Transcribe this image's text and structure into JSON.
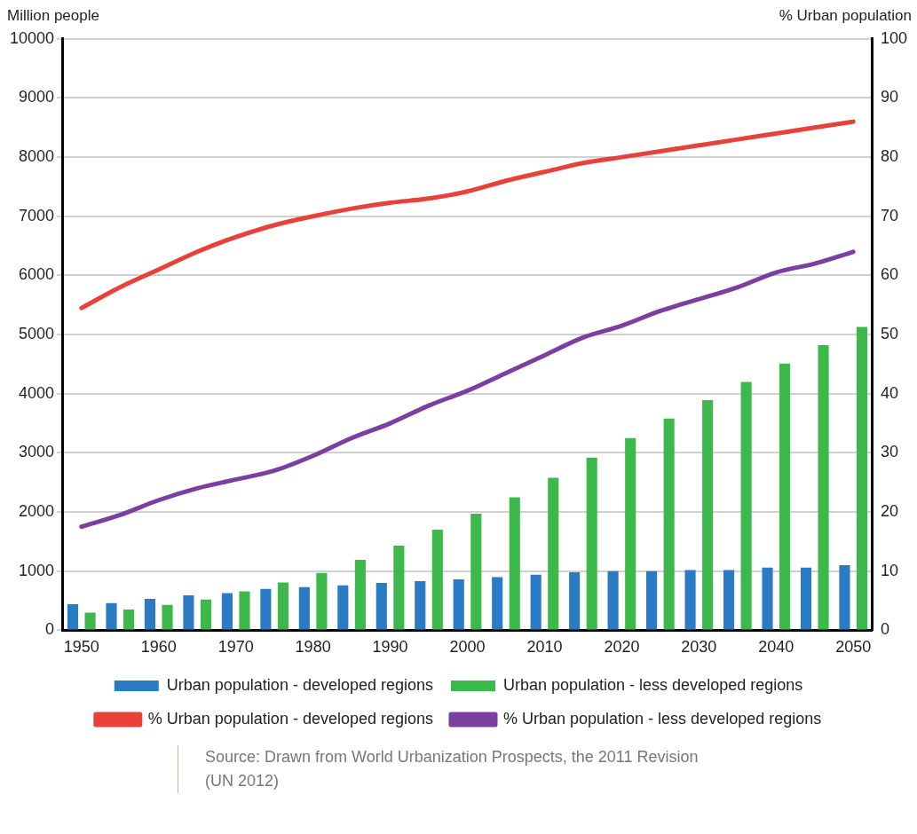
{
  "chart_data": {
    "type": "bar",
    "ylabel": "Million people",
    "y2label": "% Urban population",
    "categories": [
      "1950",
      null,
      "1960",
      null,
      "1970",
      null,
      "1980",
      null,
      "1990",
      null,
      "2000",
      null,
      "2010",
      null,
      "2020",
      null,
      "2030",
      null,
      "2040",
      null,
      "2050"
    ],
    "series": [
      {
        "name": "Urban population - developed regions",
        "color": "#2b7bc4",
        "values": [
          440,
          460,
          530,
          590,
          630,
          700,
          730,
          760,
          800,
          830,
          860,
          900,
          940,
          980,
          1000,
          1000,
          1020,
          1020,
          1060,
          1060,
          1100
        ]
      },
      {
        "name": "Urban population - less developed regions",
        "color": "#3cb94a",
        "values": [
          300,
          350,
          430,
          520,
          660,
          810,
          970,
          1190,
          1430,
          1700,
          1970,
          2250,
          2580,
          2920,
          3250,
          3580,
          3890,
          4200,
          4510,
          4820,
          5130
        ]
      },
      {
        "name": "% Urban population - developed regions",
        "type": "line",
        "axis": "y2",
        "color": "#e8413a",
        "values": [
          54.5,
          58,
          61,
          64,
          66.5,
          68.5,
          70,
          71.3,
          72.3,
          73,
          74.2,
          76,
          77.5,
          79,
          80,
          81,
          82,
          83,
          84,
          85,
          86
        ]
      },
      {
        "name": "% Urban population - less developed regions",
        "type": "line",
        "axis": "y2",
        "color": "#7a3fa0",
        "values": [
          17.5,
          19.5,
          22,
          24,
          25.5,
          27,
          29.5,
          32.5,
          35,
          38,
          40.5,
          43.5,
          46.5,
          49.5,
          51.5,
          54,
          56,
          58,
          60.5,
          62,
          64
        ]
      }
    ],
    "ylim": [
      0,
      10000
    ],
    "yticks": [
      0,
      1000,
      2000,
      3000,
      4000,
      5000,
      6000,
      7000,
      8000,
      9000,
      10000
    ],
    "y2lim": [
      0,
      100
    ],
    "y2ticks": [
      0,
      10,
      20,
      30,
      40,
      50,
      60,
      70,
      80,
      90,
      100
    ],
    "grid": "y",
    "legend": "bottom",
    "marker": "none",
    "line_style": "solid",
    "annotations": [
      "Source: Drawn from World Urbanization Prospects, the 2011 Revision (UN 2012)"
    ]
  }
}
